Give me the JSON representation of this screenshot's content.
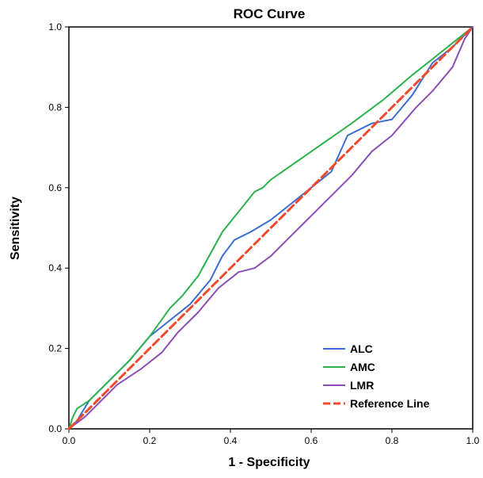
{
  "colors": {
    "ALC": "#3c6ed2",
    "AMC": "#2bb24c",
    "LMR": "#8a4fb5",
    "Reference Line": "#f04a2e",
    "frame": "#000000",
    "background": "#ffffff"
  },
  "chart_data": {
    "type": "line",
    "title": "ROC Curve",
    "xlabel": "1 - Specificity",
    "ylabel": "Sensitivity",
    "xlim": [
      0.0,
      1.0
    ],
    "ylim": [
      0.0,
      1.0
    ],
    "xticks": [
      "0.0",
      "0.2",
      "0.4",
      "0.6",
      "0.8",
      "1.0"
    ],
    "yticks": [
      "0.0",
      "0.2",
      "0.4",
      "0.6",
      "0.8",
      "1.0"
    ],
    "grid": false,
    "legend_position": "bottom-right",
    "series": [
      {
        "name": "ALC",
        "style": "solid",
        "points": [
          [
            0,
            0
          ],
          [
            0.02,
            0.02
          ],
          [
            0.05,
            0.07
          ],
          [
            0.08,
            0.1
          ],
          [
            0.11,
            0.13
          ],
          [
            0.15,
            0.17
          ],
          [
            0.2,
            0.23
          ],
          [
            0.25,
            0.27
          ],
          [
            0.3,
            0.31
          ],
          [
            0.35,
            0.37
          ],
          [
            0.38,
            0.43
          ],
          [
            0.41,
            0.47
          ],
          [
            0.45,
            0.49
          ],
          [
            0.5,
            0.52
          ],
          [
            0.55,
            0.56
          ],
          [
            0.6,
            0.6
          ],
          [
            0.65,
            0.64
          ],
          [
            0.69,
            0.73
          ],
          [
            0.75,
            0.76
          ],
          [
            0.8,
            0.77
          ],
          [
            0.85,
            0.83
          ],
          [
            0.9,
            0.91
          ],
          [
            0.95,
            0.95
          ],
          [
            0.98,
            0.98
          ],
          [
            1.0,
            1.0
          ]
        ]
      },
      {
        "name": "AMC",
        "style": "solid",
        "points": [
          [
            0,
            0
          ],
          [
            0.01,
            0.03
          ],
          [
            0.02,
            0.05
          ],
          [
            0.05,
            0.07
          ],
          [
            0.1,
            0.12
          ],
          [
            0.15,
            0.17
          ],
          [
            0.2,
            0.23
          ],
          [
            0.25,
            0.3
          ],
          [
            0.28,
            0.33
          ],
          [
            0.32,
            0.38
          ],
          [
            0.38,
            0.49
          ],
          [
            0.46,
            0.59
          ],
          [
            0.48,
            0.6
          ],
          [
            0.5,
            0.62
          ],
          [
            0.6,
            0.69
          ],
          [
            0.7,
            0.76
          ],
          [
            0.78,
            0.82
          ],
          [
            0.85,
            0.88
          ],
          [
            0.9,
            0.92
          ],
          [
            0.95,
            0.96
          ],
          [
            1.0,
            1.0
          ]
        ]
      },
      {
        "name": "LMR",
        "style": "solid",
        "points": [
          [
            0,
            0
          ],
          [
            0.04,
            0.03
          ],
          [
            0.08,
            0.07
          ],
          [
            0.12,
            0.11
          ],
          [
            0.18,
            0.15
          ],
          [
            0.23,
            0.19
          ],
          [
            0.27,
            0.24
          ],
          [
            0.32,
            0.29
          ],
          [
            0.37,
            0.35
          ],
          [
            0.42,
            0.39
          ],
          [
            0.46,
            0.4
          ],
          [
            0.5,
            0.43
          ],
          [
            0.55,
            0.48
          ],
          [
            0.6,
            0.53
          ],
          [
            0.65,
            0.58
          ],
          [
            0.7,
            0.63
          ],
          [
            0.75,
            0.69
          ],
          [
            0.8,
            0.73
          ],
          [
            0.86,
            0.8
          ],
          [
            0.9,
            0.84
          ],
          [
            0.95,
            0.9
          ],
          [
            0.98,
            0.97
          ],
          [
            1.0,
            1.0
          ]
        ]
      },
      {
        "name": "Reference Line",
        "style": "dashed",
        "points": [
          [
            0,
            0
          ],
          [
            1,
            1
          ]
        ]
      }
    ]
  }
}
